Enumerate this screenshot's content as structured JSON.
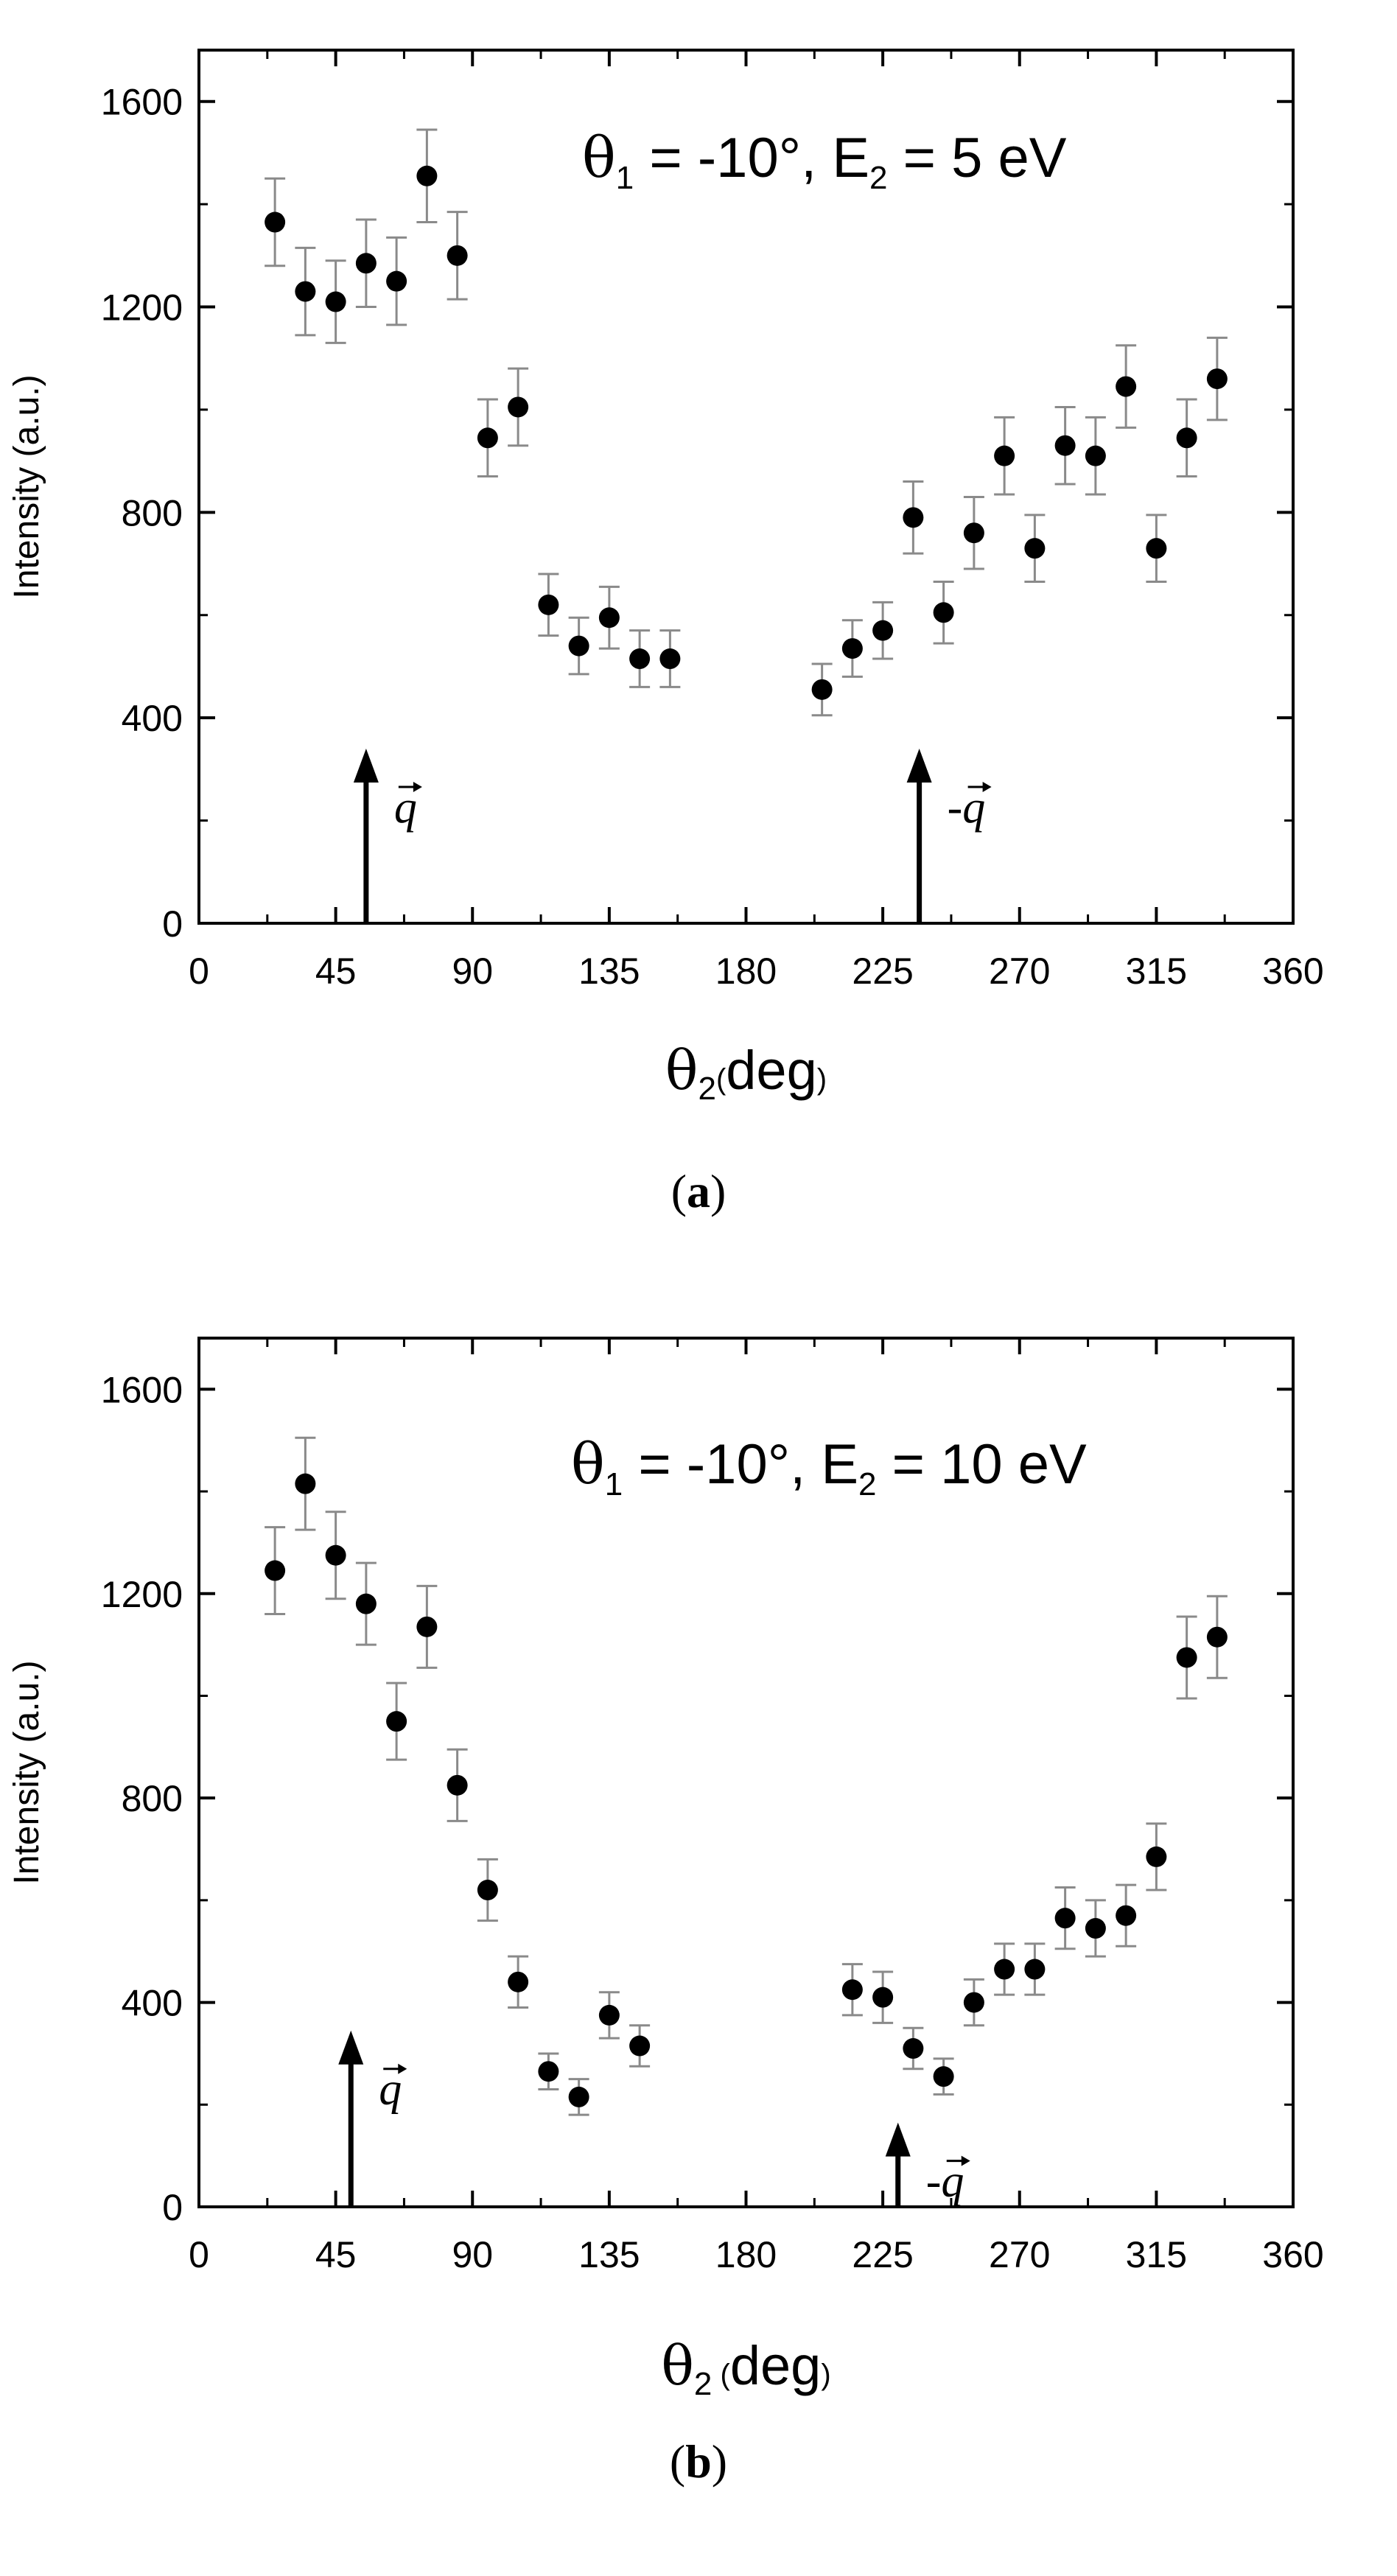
{
  "chart_data": [
    {
      "type": "scatter",
      "panel_label": "a",
      "title": "θ1 = -10°, E2 = 5 eV",
      "title_parts": {
        "theta": "θ",
        "theta_sub": "1",
        "mid": " = -10°, E",
        "e_sub": "2",
        "tail": " = 5 eV"
      },
      "xlabel_parts": {
        "theta": "θ",
        "sub": "2",
        "paren_open": "(",
        "unit": "deg",
        "paren_close": ")"
      },
      "ylabel": "Intensity (a.u.)",
      "xlim": [
        0,
        360
      ],
      "ylim": [
        0,
        1700
      ],
      "xticks": [
        0,
        45,
        90,
        135,
        180,
        225,
        270,
        315,
        360
      ],
      "yticks": [
        0,
        400,
        800,
        1200,
        1600
      ],
      "series": [
        {
          "name": "Intensity",
          "x": [
            25,
            35,
            45,
            55,
            65,
            75,
            85,
            95,
            105,
            115,
            125,
            135,
            145,
            155,
            205,
            215,
            225,
            235,
            245,
            255,
            265,
            275,
            285,
            295,
            305,
            315,
            325,
            335
          ],
          "y": [
            1365,
            1230,
            1210,
            1285,
            1250,
            1455,
            1300,
            945,
            1005,
            620,
            540,
            595,
            515,
            515,
            455,
            535,
            570,
            790,
            605,
            760,
            910,
            730,
            930,
            910,
            1045,
            730,
            945,
            1060
          ],
          "yerr": [
            85,
            85,
            80,
            85,
            85,
            90,
            85,
            75,
            75,
            60,
            55,
            60,
            55,
            55,
            50,
            55,
            55,
            70,
            60,
            70,
            75,
            65,
            75,
            75,
            80,
            65,
            75,
            80
          ]
        }
      ],
      "arrows": [
        {
          "label_prefix": "",
          "label": "q",
          "x": 55,
          "y_start": 0,
          "y_end": 340
        },
        {
          "label_prefix": "-",
          "label": "q",
          "x": 237,
          "y_start": 0,
          "y_end": 340
        }
      ]
    },
    {
      "type": "scatter",
      "panel_label": "b",
      "title": "θ1 = -10°, E2 = 10 eV",
      "title_parts": {
        "theta": "θ",
        "theta_sub": "1",
        "mid": " = -10°, E",
        "e_sub": "2",
        "tail": " = 10 eV"
      },
      "xlabel_parts": {
        "theta": "θ",
        "sub": "2",
        "paren_open": " (",
        "unit": "deg",
        "paren_close": ")"
      },
      "ylabel": "Intensity (a.u.)",
      "xlim": [
        0,
        360
      ],
      "ylim": [
        0,
        1700
      ],
      "xticks": [
        0,
        45,
        90,
        135,
        180,
        225,
        270,
        315,
        360
      ],
      "yticks": [
        0,
        400,
        800,
        1200,
        1600
      ],
      "series": [
        {
          "name": "Intensity",
          "x": [
            25,
            35,
            45,
            55,
            65,
            75,
            85,
            95,
            105,
            115,
            125,
            135,
            145,
            215,
            225,
            235,
            245,
            255,
            265,
            275,
            285,
            295,
            305,
            315,
            325,
            335
          ],
          "y": [
            1245,
            1415,
            1275,
            1180,
            950,
            1135,
            825,
            620,
            440,
            265,
            215,
            375,
            315,
            425,
            410,
            310,
            255,
            400,
            465,
            465,
            565,
            545,
            570,
            685,
            1075,
            1115
          ],
          "yerr": [
            85,
            90,
            85,
            80,
            75,
            80,
            70,
            60,
            50,
            35,
            35,
            45,
            40,
            50,
            50,
            40,
            35,
            45,
            50,
            50,
            60,
            55,
            60,
            65,
            80,
            80
          ]
        }
      ],
      "arrows": [
        {
          "label_prefix": "",
          "label": "q",
          "x": 50,
          "y_start": 0,
          "y_end": 345
        },
        {
          "label_prefix": "-",
          "label": "q",
          "x": 230,
          "y_start": 0,
          "y_end": 165
        }
      ]
    }
  ]
}
